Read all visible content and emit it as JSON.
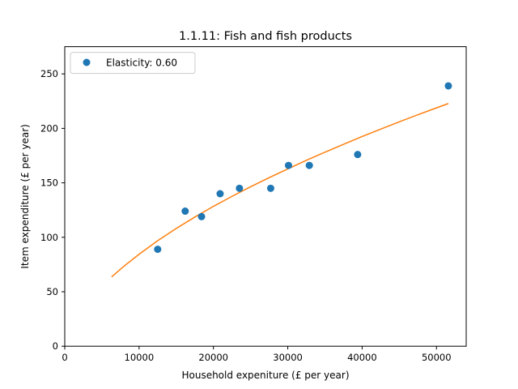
{
  "chart_data": {
    "type": "scatter",
    "title": "1.1.11: Fish and fish products",
    "xlabel": "Household expeniture (£ per year)",
    "ylabel": "Item expenditure (£ per year)",
    "xlim": [
      0,
      54000
    ],
    "ylim": [
      0,
      275
    ],
    "xticks": [
      0,
      10000,
      20000,
      30000,
      40000,
      50000
    ],
    "yticks": [
      0,
      50,
      100,
      150,
      200,
      250
    ],
    "grid": false,
    "legend_position": "upper-left",
    "series": [
      {
        "name": "Elasticity: 0.60",
        "kind": "scatter",
        "color": "#1f77b4",
        "x": [
          12500,
          16200,
          18400,
          20900,
          23500,
          27700,
          30100,
          32900,
          39400,
          51600
        ],
        "y": [
          89,
          124,
          119,
          140,
          145,
          145,
          166,
          166,
          176,
          239
        ]
      },
      {
        "kind": "line",
        "color": "#ff7f0e",
        "x": [
          6300,
          8000,
          10000,
          12500,
          15000,
          17500,
          20000,
          22500,
          25000,
          27500,
          30000,
          32500,
          35000,
          37500,
          40000,
          42500,
          45000,
          47500,
          50000,
          51600
        ],
        "y": [
          63.6,
          73.7,
          84.4,
          96.9,
          108.1,
          118.6,
          128.4,
          137.6,
          146.4,
          154.8,
          162.8,
          170.7,
          178.1,
          185.4,
          192.5,
          199.3,
          206.0,
          212.5,
          218.8,
          222.8
        ]
      }
    ]
  }
}
